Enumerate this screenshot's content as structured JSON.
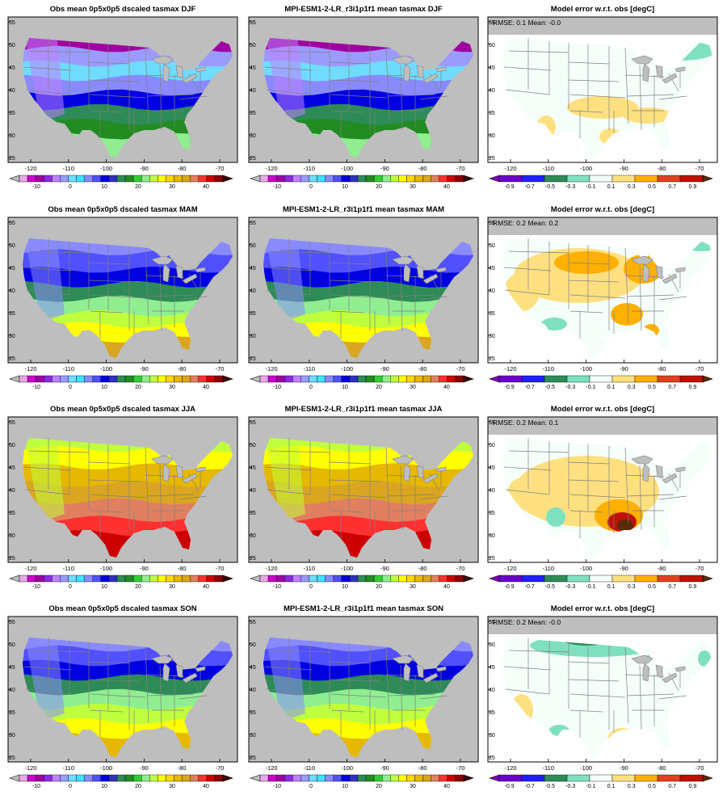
{
  "figure": {
    "rows": [
      {
        "season": "DJF",
        "obs_title": "Obs mean 0p5x0p5 dscaled tasmax DJF",
        "model_title": "MPI-ESM1-2-LR_r3i1p1f1 mean tasmax DJF",
        "err_title": "Model error w.r.t. obs [degC]",
        "stats": "RMSE: 0.1  Mean: -0.0"
      },
      {
        "season": "MAM",
        "obs_title": "Obs mean 0p5x0p5 dscaled tasmax MAM",
        "model_title": "MPI-ESM1-2-LR_r3i1p1f1 mean tasmax MAM",
        "err_title": "Model error w.r.t. obs [degC]",
        "stats": "RMSE: 0.2  Mean: 0.2"
      },
      {
        "season": "JJA",
        "obs_title": "Obs mean 0p5x0p5 dscaled tasmax JJA",
        "model_title": "MPI-ESM1-2-LR_r3i1p1f1 mean tasmax JJA",
        "err_title": "Model error w.r.t. obs [degC]",
        "stats": "RMSE: 0.2  Mean: 0.1"
      },
      {
        "season": "SON",
        "obs_title": "Obs mean 0p5x0p5 dscaled tasmax SON",
        "model_title": "MPI-ESM1-2-LR_r3i1p1f1 mean tasmax SON",
        "err_title": "Model error w.r.t. obs [degC]",
        "stats": "RMSE: 0.2  Mean: -0.0"
      }
    ],
    "x_ticks": [
      "-120",
      "-110",
      "-100",
      "-90",
      "-80",
      "-70"
    ],
    "y_ticks": [
      "55",
      "50",
      "45",
      "40",
      "35",
      "30",
      "25"
    ],
    "temp_colorbar": {
      "labels": [
        "-10",
        "0",
        "10",
        "20",
        "30",
        "40"
      ],
      "colors": [
        "#bebebe",
        "#e6a8e6",
        "#cc00cc",
        "#a000a0",
        "#8a2be2",
        "#c080ff",
        "#9b9bff",
        "#6fdcff",
        "#40e0ff",
        "#8a8aff",
        "#5050ff",
        "#0000e0",
        "#3030c0",
        "#2e8b57",
        "#228b22",
        "#32cd32",
        "#90ee90",
        "#c0ff3e",
        "#ffff00",
        "#ffd700",
        "#e6b800",
        "#daa520",
        "#e08060",
        "#ff3030",
        "#cc0000",
        "#8b0000",
        "#3b0a0a"
      ]
    },
    "err_colorbar": {
      "labels": [
        "-0.9",
        "-0.7",
        "-0.5",
        "-0.3",
        "-0.1",
        "0.1",
        "0.3",
        "0.5",
        "0.7",
        "0.9"
      ],
      "colors": [
        "#8000b0",
        "#6a00cc",
        "#2020ff",
        "#2e8b57",
        "#7fe0c0",
        "#f5fffa",
        "#ffe080",
        "#ffb000",
        "#e04020",
        "#c01000",
        "#5a2a0a"
      ]
    },
    "colors": {
      "land_missing": "#bebebe",
      "state_border": "#808080",
      "frame": "#000000"
    }
  }
}
